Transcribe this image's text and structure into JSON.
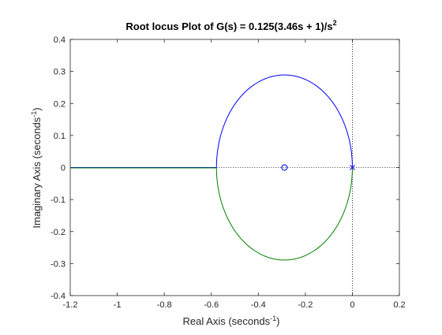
{
  "chart_data": {
    "type": "line",
    "title": {
      "main": "Root locus Plot of G(s) = 0.125(3.46s + 1)/s",
      "superscript": "2"
    },
    "xlabel": {
      "main": "Real Axis (seconds",
      "superscript": "-1",
      "suffix": ")"
    },
    "ylabel": {
      "main": "Imaginary Axis (seconds",
      "superscript": "-1",
      "suffix": ")"
    },
    "xlim": [
      -1.2,
      0.2
    ],
    "ylim": [
      -0.4,
      0.4
    ],
    "xticks": [
      -1.2,
      -1,
      -0.8,
      -0.6,
      -0.4,
      -0.2,
      0,
      0.2
    ],
    "xtick_labels": [
      "-1.2",
      "-1",
      "-0.8",
      "-0.6",
      "-0.4",
      "-0.2",
      "0",
      "0.2"
    ],
    "yticks": [
      -0.4,
      -0.3,
      -0.2,
      -0.1,
      0,
      0.1,
      0.2,
      0.3,
      0.4
    ],
    "ytick_labels": [
      "-0.4",
      "-0.3",
      "-0.2",
      "-0.1",
      "0",
      "0.1",
      "0.2",
      "0.3",
      "0.4"
    ],
    "grid": false,
    "locus": {
      "circle_center": [
        -0.289,
        0
      ],
      "circle_radius": 0.289,
      "breakin_point": [
        -0.578,
        0
      ],
      "real_axis_branch": [
        [
          -1.2,
          0
        ],
        [
          -0.578,
          0
        ]
      ]
    },
    "poles": [
      [
        0,
        0
      ]
    ],
    "zeros": [
      [
        -0.289,
        0
      ]
    ],
    "colors": {
      "branch_upper": "#0000ff",
      "branch_lower": "#008000",
      "marker": "#0000ff",
      "reference_line": "#000000",
      "axes": "#262626"
    }
  }
}
